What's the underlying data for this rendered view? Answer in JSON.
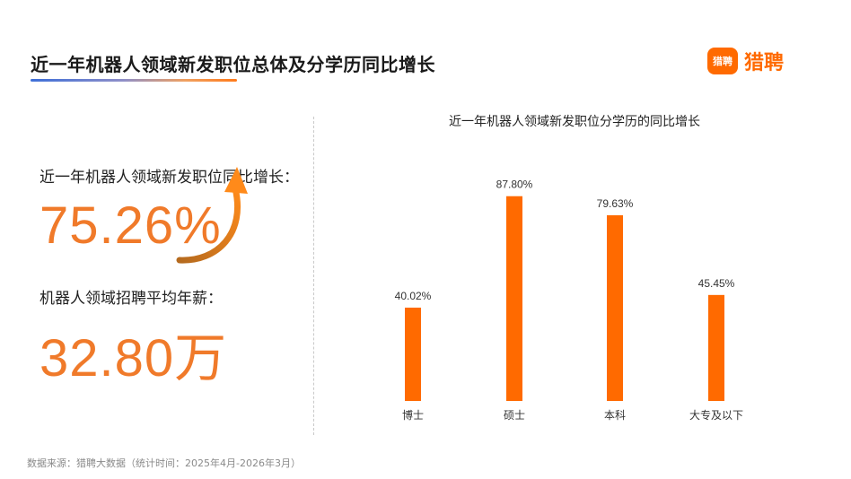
{
  "header": {
    "title": "近一年机器人领域新发职位总体及分学历同比增长",
    "brand_icon_text": "猎聘",
    "brand_name": "猎聘"
  },
  "stats": {
    "growth_label": "近一年机器人领域新发职位同比增长：",
    "growth_value": "75.26%",
    "salary_label": "机器人领域招聘平均年薪：",
    "salary_value": "32.80万"
  },
  "chart_data": {
    "type": "bar",
    "title": "近一年机器人领域新发职位分学历的同比增长",
    "categories": [
      "博士",
      "硕士",
      "本科",
      "大专及以下"
    ],
    "values": [
      40.02,
      87.8,
      79.63,
      45.45
    ],
    "value_labels": [
      "40.02%",
      "87.80%",
      "79.63%",
      "45.45%"
    ],
    "bar_color": "#ff6a00",
    "ylim": [
      0,
      100
    ],
    "grid": false,
    "xlabel": "",
    "ylabel": ""
  },
  "footer": {
    "source": "数据来源：猎聘大数据（统计时间：2025年4月-2026年3月）"
  },
  "colors": {
    "accent": "#ff6a00",
    "number": "#f07a2a"
  }
}
